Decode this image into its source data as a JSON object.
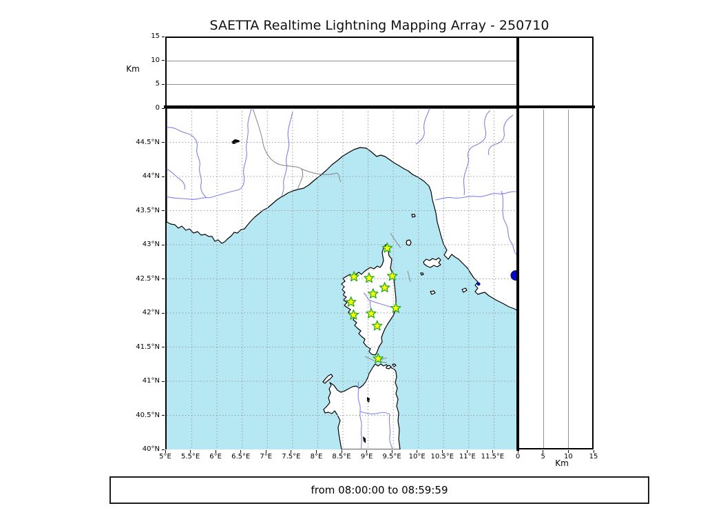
{
  "title": "SAETTA Realtime Lightning Mapping Array - 250710",
  "footer": {
    "text": "from 08:00:00 to 08:59:59"
  },
  "altitude_axis": {
    "label": "Km",
    "range": [
      0,
      15
    ],
    "ticks": [
      {
        "v": 15,
        "label": "15"
      },
      {
        "v": 10,
        "label": "10"
      },
      {
        "v": 5,
        "label": "5"
      },
      {
        "v": 0,
        "label": "0"
      }
    ],
    "gridlines": [
      5,
      10
    ]
  },
  "map": {
    "lon_range": [
      5,
      12
    ],
    "lat_range": [
      40,
      45
    ],
    "lon_ticks": [
      {
        "v": 5,
        "label": "5°E"
      },
      {
        "v": 5.5,
        "label": "5.5°E"
      },
      {
        "v": 6,
        "label": "6°E"
      },
      {
        "v": 6.5,
        "label": "6.5°E"
      },
      {
        "v": 7,
        "label": "7°E"
      },
      {
        "v": 7.5,
        "label": "7.5°E"
      },
      {
        "v": 8,
        "label": "8°E"
      },
      {
        "v": 8.5,
        "label": "8.5°E"
      },
      {
        "v": 9,
        "label": "9°E"
      },
      {
        "v": 9.5,
        "label": "9.5°E"
      },
      {
        "v": 10,
        "label": "10°E"
      },
      {
        "v": 10.5,
        "label": "10.5°E"
      },
      {
        "v": 11,
        "label": "11°E"
      },
      {
        "v": 11.5,
        "label": "11.5°E"
      }
    ],
    "lat_ticks": [
      {
        "v": 44.5,
        "label": "44.5°N"
      },
      {
        "v": 44,
        "label": "44°N"
      },
      {
        "v": 43.5,
        "label": "43.5°N"
      },
      {
        "v": 43,
        "label": "43°N"
      },
      {
        "v": 42.5,
        "label": "42.5°N"
      },
      {
        "v": 42,
        "label": "42°N"
      },
      {
        "v": 41.5,
        "label": "41.5°N"
      },
      {
        "v": 41,
        "label": "41°N"
      },
      {
        "v": 40.5,
        "label": "40.5°N"
      },
      {
        "v": 40,
        "label": "40°N"
      }
    ],
    "grid_lon": [
      5.5,
      6,
      6.5,
      7,
      7.5,
      8,
      8.5,
      9,
      9.5,
      10,
      10.5,
      11,
      11.5
    ],
    "grid_lat": [
      40.5,
      41,
      41.5,
      42,
      42.5,
      43,
      43.5,
      44,
      44.5
    ]
  },
  "stations": [
    {
      "lon": 9.38,
      "lat": 42.95
    },
    {
      "lon": 8.72,
      "lat": 42.53
    },
    {
      "lon": 9.02,
      "lat": 42.51
    },
    {
      "lon": 9.48,
      "lat": 42.54
    },
    {
      "lon": 9.33,
      "lat": 42.37
    },
    {
      "lon": 9.1,
      "lat": 42.28
    },
    {
      "lon": 8.66,
      "lat": 42.16
    },
    {
      "lon": 9.55,
      "lat": 42.07
    },
    {
      "lon": 8.71,
      "lat": 41.97
    },
    {
      "lon": 9.06,
      "lat": 41.99
    },
    {
      "lon": 9.18,
      "lat": 41.81
    },
    {
      "lon": 9.2,
      "lat": 41.33
    }
  ],
  "event_marker": {
    "lon": 11.93,
    "lat": 42.55,
    "radius": 7
  },
  "colors": {
    "sea": "#b6e8f4",
    "land": "#ffffff",
    "coastline": "#000000",
    "river": "#8080e8",
    "country_border": "#808080",
    "gridline": "#999999",
    "station_fill": "#ffff00",
    "station_edge": "#22aa22",
    "event_dot": "#0000cc"
  }
}
